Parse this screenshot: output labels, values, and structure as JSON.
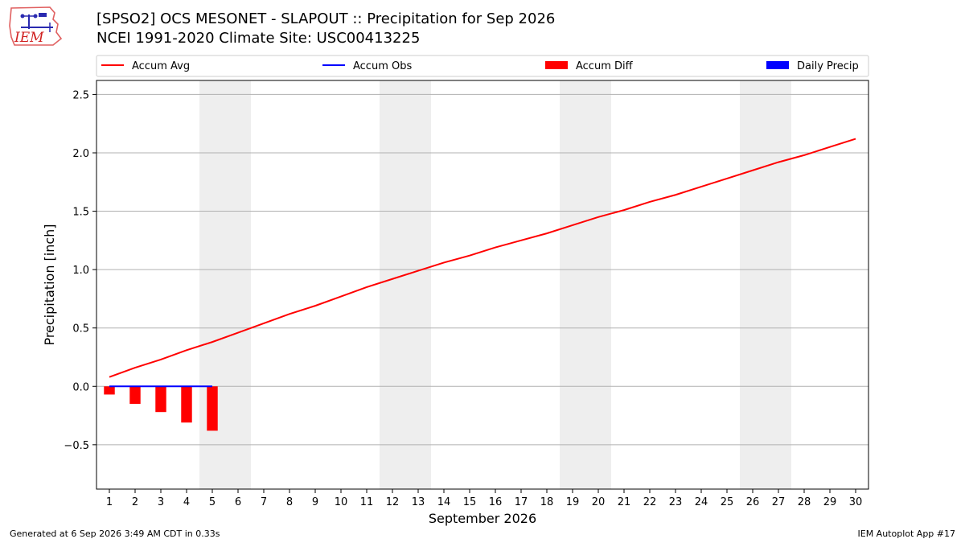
{
  "header": {
    "title_line1": "[SPSO2] OCS MESONET - SLAPOUT :: Precipitation for Sep 2026",
    "title_line2": "NCEI 1991-2020 Climate Site: USC00413225",
    "logo_text": "IEM"
  },
  "footer": {
    "generated": "Generated at 6 Sep 2026 3:49 AM CDT in 0.33s",
    "app": "IEM Autoplot App #17"
  },
  "colors": {
    "accum_avg": "#ff0000",
    "accum_obs": "#0000ff",
    "accum_diff": "#ff0000",
    "daily_precip": "#0000ff",
    "weekend_shade": "#eeeeee",
    "grid": "#b0b0b0"
  },
  "chart_data": {
    "type": "line",
    "title": "[SPSO2] OCS MESONET - SLAPOUT :: Precipitation for Sep 2026",
    "subtitle": "NCEI 1991-2020 Climate Site: USC00413225",
    "xlabel": "September 2026",
    "ylabel": "Precipitation [inch]",
    "xlim": [
      0.5,
      30.5
    ],
    "ylim": [
      -0.88,
      2.62
    ],
    "x_ticks": [
      "1",
      "2",
      "3",
      "4",
      "5",
      "6",
      "7",
      "8",
      "9",
      "10",
      "11",
      "12",
      "13",
      "14",
      "15",
      "16",
      "17",
      "18",
      "19",
      "20",
      "21",
      "22",
      "23",
      "24",
      "25",
      "26",
      "27",
      "28",
      "29",
      "30"
    ],
    "y_ticks": [
      -0.5,
      0.0,
      0.5,
      1.0,
      1.5,
      2.0,
      2.5
    ],
    "y_tick_labels": [
      "−0.5",
      "0.0",
      "0.5",
      "1.0",
      "1.5",
      "2.0",
      "2.5"
    ],
    "grid": "horizontal",
    "legend": {
      "placement": "top",
      "entries": [
        {
          "label": "Accum Avg",
          "kind": "line",
          "color": "#ff0000"
        },
        {
          "label": "Accum Obs",
          "kind": "line",
          "color": "#0000ff"
        },
        {
          "label": "Accum Diff",
          "kind": "bar",
          "color": "#ff0000"
        },
        {
          "label": "Daily Precip",
          "kind": "bar",
          "color": "#0000ff"
        }
      ]
    },
    "weekend_shading": [
      [
        5,
        6
      ],
      [
        12,
        13
      ],
      [
        19,
        20
      ],
      [
        26,
        27
      ]
    ],
    "series": [
      {
        "name": "Accum Avg",
        "type": "line",
        "x": [
          1,
          2,
          3,
          4,
          5,
          6,
          7,
          8,
          9,
          10,
          11,
          12,
          13,
          14,
          15,
          16,
          17,
          18,
          19,
          20,
          21,
          22,
          23,
          24,
          25,
          26,
          27,
          28,
          29,
          30
        ],
        "values": [
          0.08,
          0.16,
          0.23,
          0.31,
          0.38,
          0.46,
          0.54,
          0.62,
          0.69,
          0.77,
          0.85,
          0.92,
          0.99,
          1.06,
          1.12,
          1.19,
          1.25,
          1.31,
          1.38,
          1.45,
          1.51,
          1.58,
          1.64,
          1.71,
          1.78,
          1.85,
          1.92,
          1.98,
          2.05,
          2.12
        ]
      },
      {
        "name": "Accum Obs",
        "type": "line",
        "x": [
          1,
          2,
          3,
          4,
          5
        ],
        "values": [
          0,
          0,
          0,
          0,
          0
        ]
      },
      {
        "name": "Accum Diff",
        "type": "bar",
        "x": [
          1,
          2,
          3,
          4,
          5
        ],
        "values": [
          -0.07,
          -0.15,
          -0.22,
          -0.31,
          -0.38
        ]
      },
      {
        "name": "Daily Precip",
        "type": "bar",
        "x": [
          1,
          2,
          3,
          4,
          5
        ],
        "values": [
          0,
          0,
          0,
          0,
          0
        ]
      }
    ]
  }
}
